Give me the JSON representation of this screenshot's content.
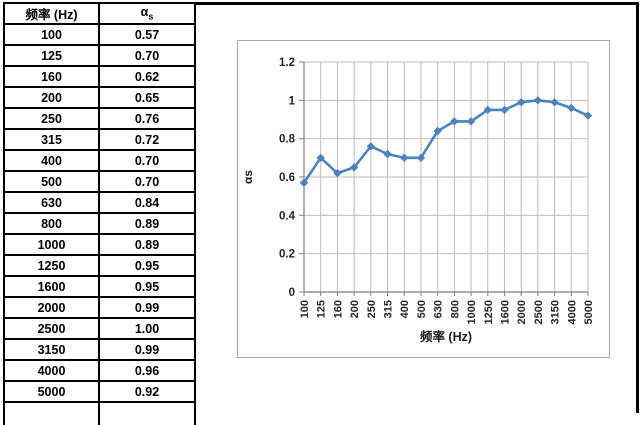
{
  "table": {
    "col1_header": "频率 (Hz)",
    "alpha_base": "α",
    "alpha_sub": "s",
    "rows": [
      [
        "100",
        "0.57"
      ],
      [
        "125",
        "0.70"
      ],
      [
        "160",
        "0.62"
      ],
      [
        "200",
        "0.65"
      ],
      [
        "250",
        "0.76"
      ],
      [
        "315",
        "0.72"
      ],
      [
        "400",
        "0.70"
      ],
      [
        "500",
        "0.70"
      ],
      [
        "630",
        "0.84"
      ],
      [
        "800",
        "0.89"
      ],
      [
        "1000",
        "0.89"
      ],
      [
        "1250",
        "0.95"
      ],
      [
        "1600",
        "0.95"
      ],
      [
        "2000",
        "0.99"
      ],
      [
        "2500",
        "1.00"
      ],
      [
        "3150",
        "0.99"
      ],
      [
        "4000",
        "0.96"
      ],
      [
        "5000",
        "0.92"
      ]
    ]
  },
  "chart_data": {
    "type": "line",
    "title": "",
    "categories": [
      "100",
      "125",
      "160",
      "200",
      "250",
      "315",
      "400",
      "500",
      "630",
      "800",
      "1000",
      "1250",
      "1600",
      "2000",
      "2500",
      "3150",
      "4000",
      "5000"
    ],
    "values": [
      0.57,
      0.7,
      0.62,
      0.65,
      0.76,
      0.72,
      0.7,
      0.7,
      0.84,
      0.89,
      0.89,
      0.95,
      0.95,
      0.99,
      1.0,
      0.99,
      0.96,
      0.92
    ],
    "xlabel": "频率 (Hz)",
    "ylabel": "αs",
    "ylim": [
      0,
      1.2
    ],
    "yticks": [
      "0",
      "0.2",
      "0.4",
      "0.6",
      "0.8",
      "1",
      "1.2"
    ],
    "grid": true,
    "legend": "none",
    "marker": "diamond",
    "colors": {
      "series": "#4F81BD",
      "gridline": "#BDBDBD",
      "axis": "#7F7F7F",
      "chart_border": "#A6A6A6",
      "tick_text": "#262626",
      "title_text": "#1a1a1a"
    }
  }
}
